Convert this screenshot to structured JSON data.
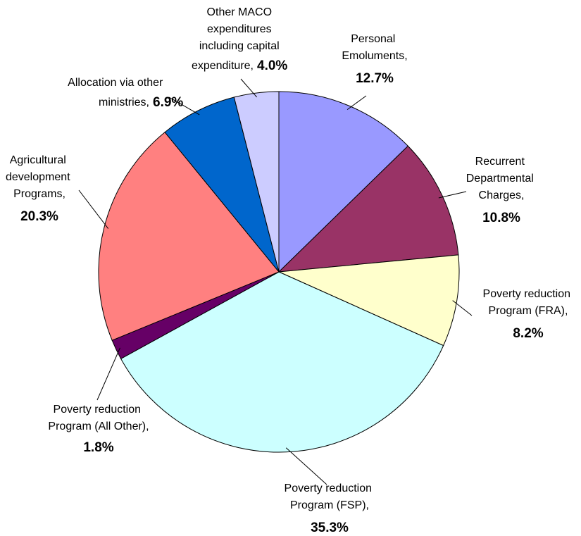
{
  "chart_data": {
    "type": "pie",
    "categories": [
      "Personal Emoluments,",
      "Recurrent Departmental Charges,",
      "Poverty reduction Program (FRA),",
      "Poverty reduction Program (FSP),",
      "Poverty reduction Program (All Other),",
      "Agricultural development Programs,",
      "Allocation via other ministries,",
      "Other MACO expenditures including capital expenditure,"
    ],
    "values": [
      12.7,
      10.8,
      8.2,
      35.3,
      1.8,
      20.3,
      6.9,
      4.0
    ],
    "value_labels": [
      "12.7%",
      "10.8%",
      "8.2%",
      "35.3%",
      "1.8%",
      "20.3%",
      "6.9%",
      "4.0%"
    ],
    "colors": [
      "#9999ff",
      "#993366",
      "#ffffcc",
      "#ccffff",
      "#660066",
      "#ff8080",
      "#0066cc",
      "#ccccff"
    ]
  }
}
